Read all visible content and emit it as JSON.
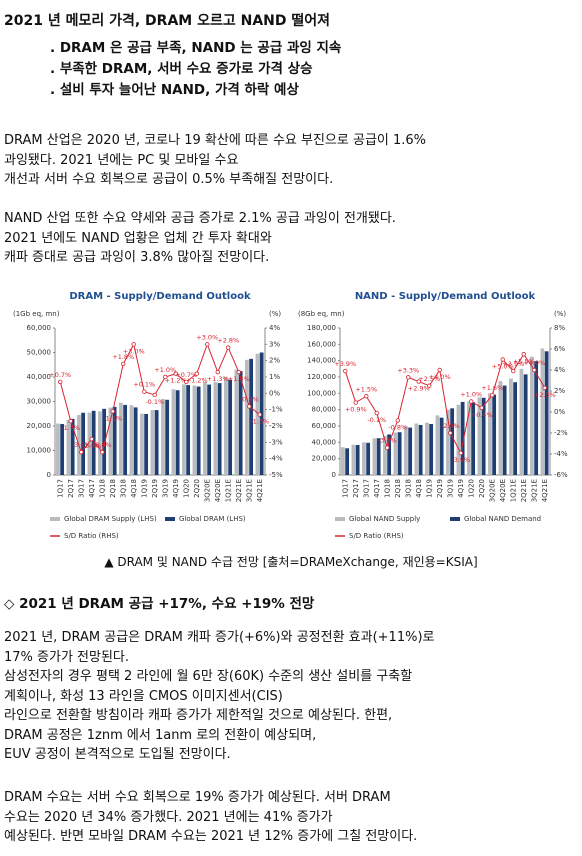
{
  "document": {
    "title": "2021 년 메모리 가격, DRAM 오르고 NAND 떨어져",
    "bullets": [
      ". DRAM 은 공급 부족, NAND 는 공급 과잉 지속",
      ". 부족한 DRAM, 서버 수요 증가로 가격 상승",
      ". 설비 투자 늘어난 NAND, 가격 하락 예상"
    ],
    "paragraph1": [
      "DRAM 산업은 2020 년, 코로나 19 확산에 따른 수요 부진으로 공급이 1.6%",
      "과잉됐다. 2021 년에는 PC 및 모바일 수요",
      "개선과 서버 수요 회복으로 공급이 0.5% 부족해질 전망이다."
    ],
    "paragraph2": [
      "NAND 산업 또한 수요 약세와 공급 증가로 2.1% 공급 과잉이 전개됐다.",
      "2021 년에도 NAND 업황은 업체 간 투자 확대와",
      "캐파 증대로 공급 과잉이 3.8% 많아질 전망이다."
    ],
    "caption": "▲ DRAM 및 NAND 수급 전망   [출처=DRAMeXchange, 재인용=KSIA]",
    "heading": "◇ 2021 년 DRAM 공급 +17%, 수요 +19% 전망",
    "paragraph3": [
      "2021 년, DRAM 공급은 DRAM 캐파 증가(+6%)와 공정전환 효과(+11%)로",
      "17% 증가가 전망된다.",
      "삼성전자의 경우 평택 2 라인에 월 6만 장(60K) 수준의 생산 설비를 구축할",
      "계획이나, 화성 13 라인을 CMOS 이미지센서(CIS)",
      "라인으로 전환할 방침이라 캐파 증가가 제한적일 것으로 예상된다. 한편,",
      "DRAM 공정은 1znm 에서 1anm 로의 전환이 예상되며,",
      "EUV 공정이 본격적으로 도입될 전망이다."
    ],
    "paragraph4": [
      "DRAM 수요는 서버 수요 회복으로 19% 증가가 예상된다. 서버 DRAM",
      "수요는 2020 년 34% 증가했다. 2021 년에는 41% 증가가",
      "예상된다. 반면 모바일 DRAM 수요는 2021 년 12% 증가에 그칠 전망이다."
    ]
  },
  "chart_data": [
    {
      "type": "bar",
      "title": "DRAM - Supply/Demand Outlook",
      "ylabel": "(1Gb eq, mn)",
      "y2label": "(%)",
      "categories": [
        "1Q17",
        "2Q17",
        "3Q17",
        "4Q17",
        "1Q18",
        "2Q18",
        "3Q18",
        "4Q18",
        "1Q19",
        "2Q19",
        "3Q19",
        "4Q19",
        "1Q20",
        "2Q20",
        "3Q20E",
        "4Q20E",
        "1Q21E",
        "2Q21E",
        "3Q21E",
        "4Q21E"
      ],
      "series": [
        {
          "name": "Global DRAM Supply (LHS)",
          "color": "#b8bcc0",
          "values": [
            21000,
            22500,
            24500,
            25500,
            26000,
            27500,
            29500,
            28500,
            25000,
            26500,
            31000,
            35000,
            37000,
            36500,
            38000,
            38000,
            40000,
            43000,
            47000,
            49500
          ]
        },
        {
          "name": "Global DRAM (LHS)",
          "color": "#1f3f73",
          "values": [
            20800,
            22900,
            25400,
            26200,
            27000,
            27800,
            28600,
            27600,
            24900,
            26500,
            30700,
            34600,
            36700,
            36100,
            36900,
            37500,
            38900,
            42400,
            47400,
            50000
          ]
        },
        {
          "name": "S/D Ratio (RHS)",
          "color": "#d9232e",
          "type": "line",
          "axis": "y2",
          "values": [
            0.7,
            -1.7,
            -3.6,
            -2.8,
            -3.6,
            -1.1,
            1.8,
            3.0,
            0.1,
            -0.1,
            1.0,
            1.2,
            0.7,
            1.2,
            3.0,
            1.3,
            2.8,
            1.3,
            -0.8,
            -1.3
          ],
          "value_labels": [
            "+0.7%",
            "-1.7%",
            "-3.6%",
            "-2.8%",
            "-3.6%",
            "-1.1%",
            "+1.8%",
            "+3.0%",
            "+0.1%",
            "-0.1%",
            "+1.0%",
            "+1.2%",
            "+0.7%",
            "+1.2%",
            "+3.0%",
            "+1.3%",
            "+2.8%",
            "+1.3%",
            "-0.8%",
            "-1.3%"
          ]
        }
      ],
      "ylim": [
        0,
        60000
      ],
      "yticks": [
        0,
        {
          "value": 10000,
          "label": "10,000"
        },
        {
          "value": 20000,
          "label": "20,000"
        },
        {
          "value": 30000,
          "label": "30,000"
        },
        {
          "value": 40000,
          "label": "40,000"
        },
        {
          "value": 50000,
          "label": "50,000"
        },
        {
          "value": 60000,
          "label": "60,000"
        }
      ],
      "y2lim": [
        -5,
        4
      ],
      "y2ticks": [
        {
          "value": -5,
          "label": "-5%"
        },
        {
          "value": -4,
          "label": "-4%"
        },
        {
          "value": -3,
          "label": "-3%"
        },
        {
          "value": -2,
          "label": "-2%"
        },
        {
          "value": -1,
          "label": "-1%"
        },
        {
          "value": 0,
          "label": "0%"
        },
        {
          "value": 1,
          "label": "1%"
        },
        {
          "value": 2,
          "label": "2%"
        },
        {
          "value": 3,
          "label": "3%"
        },
        {
          "value": 4,
          "label": "4%"
        }
      ]
    },
    {
      "type": "bar",
      "title": "NAND - Supply/Demand Outlook",
      "ylabel": "(8Gb eq, mn)",
      "y2label": "(%)",
      "categories": [
        "1Q17",
        "2Q17",
        "3Q17",
        "4Q17",
        "1Q18",
        "2Q18",
        "3Q18",
        "4Q18",
        "1Q19",
        "2Q19",
        "3Q19",
        "4Q19",
        "1Q20",
        "2Q20",
        "3Q20E",
        "4Q20E",
        "1Q21E",
        "2Q21E",
        "3Q21E",
        "4Q21E"
      ],
      "series": [
        {
          "name": "Global NAND Supply",
          "color": "#b8bcc0",
          "values": [
            34000,
            37000,
            40000,
            45000,
            48000,
            52000,
            60000,
            63000,
            64000,
            73000,
            80000,
            86000,
            90000,
            95000,
            100000,
            115000,
            118000,
            130000,
            145000,
            155000
          ]
        },
        {
          "name": "Global NAND Demand",
          "color": "#1f3f73",
          "values": [
            32700,
            36700,
            39400,
            45000,
            49700,
            52400,
            58100,
            61200,
            62400,
            70200,
            81600,
            89500,
            89100,
            94600,
            98400,
            109500,
            113600,
            123200,
            139400,
            151500
          ]
        },
        {
          "name": "S/D Ratio (RHS)",
          "color": "#d9232e",
          "type": "line",
          "axis": "y2",
          "values": [
            3.9,
            0.9,
            1.5,
            -0.1,
            -3.4,
            -0.8,
            3.3,
            2.9,
            2.5,
            4.0,
            -2.0,
            -3.9,
            1.0,
            0.4,
            1.6,
            5.0,
            3.9,
            5.5,
            4.0,
            2.3
          ],
          "value_labels": [
            "+3.9%",
            "+0.9%",
            "+1.5%",
            "-0.1%",
            "-3.4%",
            "-0.8%",
            "+3.3%",
            "+2.9%",
            "+2.5%",
            "+4.0%",
            "-2.0%",
            "-3.9%",
            "+1.0%",
            "+0.4%",
            "+1.6%",
            "+5.0%",
            "+3.9%",
            "+5.5%",
            "+4.0%",
            "+2.3%"
          ]
        }
      ],
      "ylim": [
        0,
        180000
      ],
      "yticks": [
        0,
        {
          "value": 20000,
          "label": "20,000"
        },
        {
          "value": 40000,
          "label": "40,000"
        },
        {
          "value": 60000,
          "label": "60,000"
        },
        {
          "value": 80000,
          "label": "80,000"
        },
        {
          "value": 100000,
          "label": "100,000"
        },
        {
          "value": 120000,
          "label": "120,000"
        },
        {
          "value": 140000,
          "label": "140,000"
        },
        {
          "value": 160000,
          "label": "160,000"
        },
        {
          "value": 180000,
          "label": "180,000"
        }
      ],
      "y2lim": [
        -6,
        8
      ],
      "y2ticks": [
        {
          "value": -6,
          "label": "-6%"
        },
        {
          "value": -4,
          "label": "-4%"
        },
        {
          "value": -2,
          "label": "-2%"
        },
        {
          "value": 0,
          "label": "0%"
        },
        {
          "value": 2,
          "label": "2%"
        },
        {
          "value": 4,
          "label": "4%"
        },
        {
          "value": 6,
          "label": "6%"
        },
        {
          "value": 8,
          "label": "8%"
        }
      ]
    }
  ]
}
